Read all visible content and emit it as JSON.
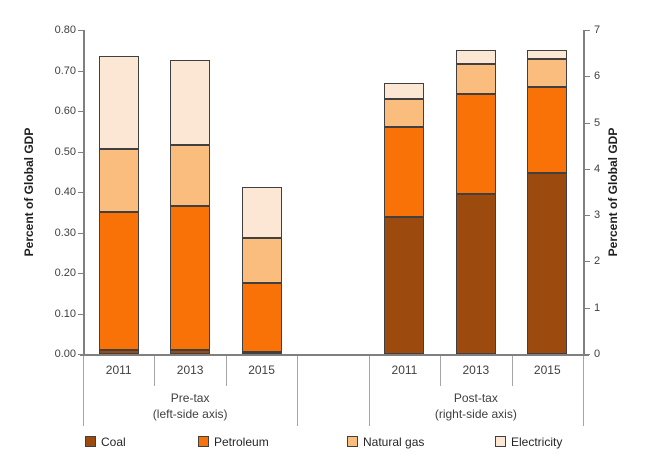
{
  "chart_data": {
    "type": "bar",
    "stacked": true,
    "title": "",
    "ylabel_left": "Percent of Global GDP",
    "ylabel_right": "Percent of Global GDP",
    "ylim_left": [
      0,
      0.8
    ],
    "ylim_right": [
      0,
      7
    ],
    "left_axis_tick_labels": [
      "0.80",
      "0.70",
      "0.60",
      "0.50",
      "0.40",
      "0.30",
      "0.20",
      "0.10",
      "0.00"
    ],
    "right_axis_tick_labels": [
      "7",
      "6",
      "5",
      "4",
      "3",
      "2",
      "1",
      "0"
    ],
    "grid": false,
    "legend_position": "bottom",
    "series": [
      {
        "name": "Coal",
        "color": "#9C4A0D"
      },
      {
        "name": "Petroleum",
        "color": "#F87208"
      },
      {
        "name": "Natural gas",
        "color": "#FBBD7D"
      },
      {
        "name": "Electricity",
        "color": "#FBE7D4"
      }
    ],
    "groups": [
      {
        "name": "Pre-tax",
        "sub": "(left-side axis)",
        "axis": "left",
        "axis_max": 0.8,
        "categories": [
          "2011",
          "2013",
          "2015"
        ],
        "bars": [
          {
            "year": "2011",
            "segments": [
              0.01,
              0.34,
              0.155,
              0.23
            ],
            "total": 0.735
          },
          {
            "year": "2013",
            "segments": [
              0.01,
              0.355,
              0.15,
              0.21
            ],
            "total": 0.725
          },
          {
            "year": "2015",
            "segments": [
              0.005,
              0.17,
              0.11,
              0.125
            ],
            "total": 0.41
          }
        ]
      },
      {
        "name": "Post-tax",
        "sub": "(right-side axis)",
        "axis": "right",
        "axis_max": 7,
        "categories": [
          "2011",
          "2013",
          "2015"
        ],
        "bars": [
          {
            "year": "2011",
            "segments": [
              2.95,
              1.95,
              0.6,
              0.35
            ],
            "total": 5.85
          },
          {
            "year": "2013",
            "segments": [
              3.45,
              2.15,
              0.65,
              0.3
            ],
            "total": 6.55
          },
          {
            "year": "2015",
            "segments": [
              3.9,
              1.85,
              0.6,
              0.2
            ],
            "total": 6.55
          }
        ]
      }
    ],
    "legend": [
      "Coal",
      "Petroleum",
      "Natural gas",
      "Electricity"
    ],
    "colors": {
      "axis_line": "#808080",
      "separator": "#a6a6a6",
      "segment_border": "#404040",
      "tick_text": "#3f3f3f"
    }
  }
}
